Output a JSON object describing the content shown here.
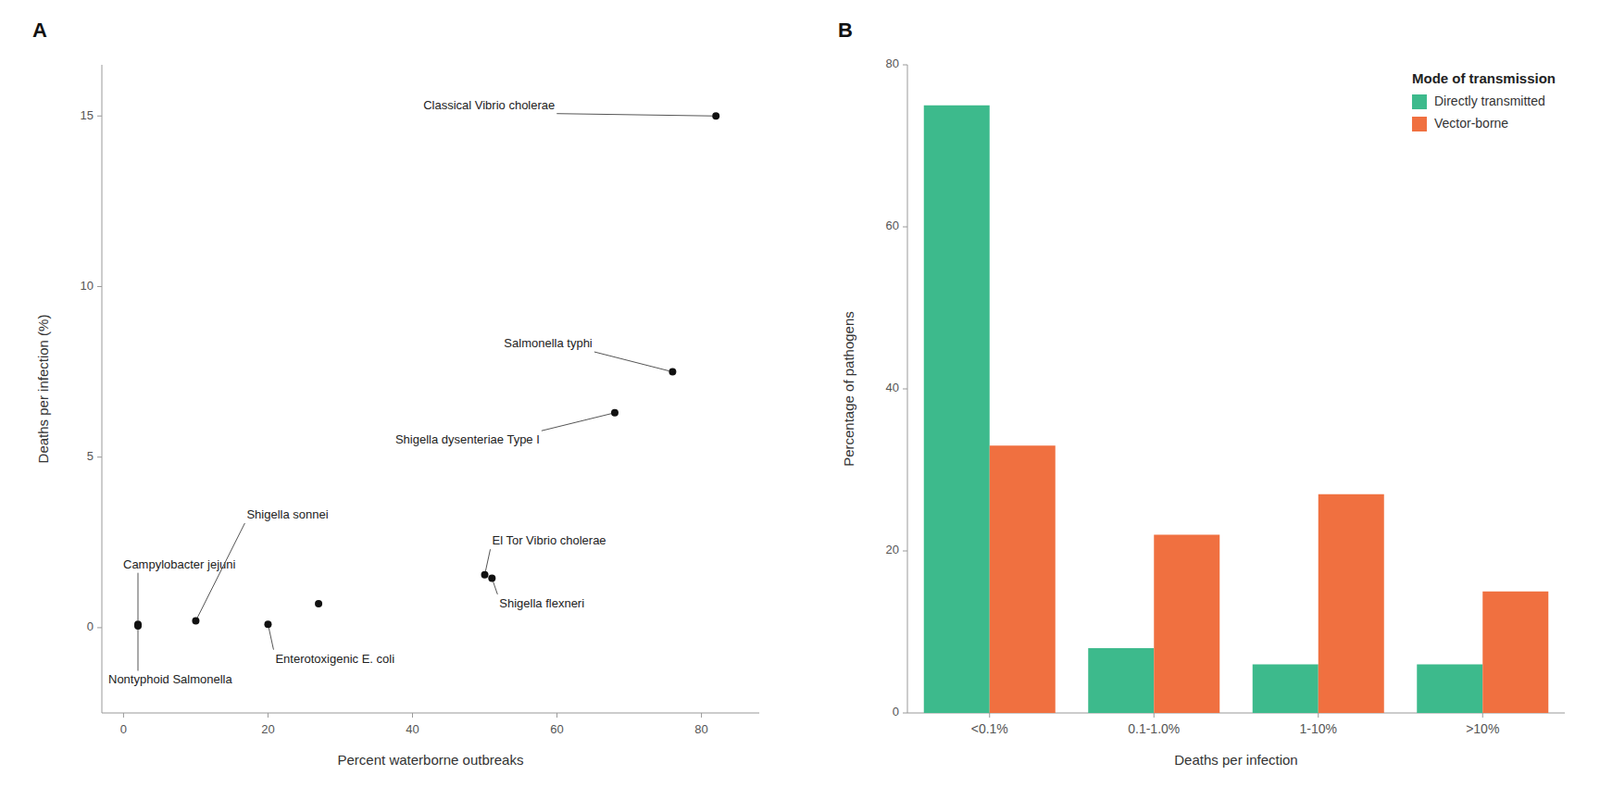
{
  "chart_data": [
    {
      "type": "scatter",
      "title": "A",
      "xlabel": "Percent waterborne outbreaks",
      "ylabel": "Deaths per infection (%)",
      "x": [
        2,
        2,
        10,
        20,
        27,
        50,
        51,
        68,
        76,
        82
      ],
      "series": [
        {
          "values": [
            0.1,
            0.05,
            0.2,
            0.1,
            0.7,
            1.55,
            1.45,
            6.3,
            7.5,
            15.0
          ],
          "color": "#111111"
        }
      ],
      "annotations": [
        {
          "text": "Campylobacter jejuni",
          "x": 2,
          "y": 0.1
        },
        {
          "text": "Nontyphoid Salmonella",
          "x": 2,
          "y": 0.05
        },
        {
          "text": "Shigella sonnei",
          "x": 10,
          "y": 0.2
        },
        {
          "text": "Enterotoxigenic E. coli",
          "x": 20,
          "y": 0.1
        },
        {
          "text": "El Tor Vibrio cholerae",
          "x": 50,
          "y": 1.55
        },
        {
          "text": "Shigella flexneri",
          "x": 51,
          "y": 1.45
        },
        {
          "text": "Shigella dysenteriae Type I",
          "x": 68,
          "y": 6.3
        },
        {
          "text": "Salmonella typhi",
          "x": 76,
          "y": 7.5
        },
        {
          "text": "Classical Vibrio cholerae",
          "x": 82,
          "y": 15.0
        }
      ],
      "xlim": [
        -3,
        88
      ],
      "ylim": [
        -2.5,
        16.5
      ],
      "xticks": [
        0,
        20,
        40,
        60,
        80
      ],
      "yticks": [
        0,
        5,
        10,
        15
      ],
      "grid": false
    },
    {
      "type": "bar",
      "title": "B",
      "xlabel": "Deaths per infection",
      "ylabel": "Percentage of pathogens",
      "legend_title": "Mode of transmission",
      "categories": [
        "<0.1%",
        "0.1-1.0%",
        "1-10%",
        ">10%"
      ],
      "series": [
        {
          "name": "Directly transmitted",
          "color": "#3dba8c",
          "values": [
            75,
            8,
            6,
            6
          ]
        },
        {
          "name": "Vector-borne",
          "color": "#f07040",
          "values": [
            33,
            22,
            27,
            15
          ]
        }
      ],
      "ylim": [
        0,
        80
      ],
      "yticks": [
        0,
        20,
        40,
        60,
        80
      ],
      "grid": false,
      "legend": "upper right"
    }
  ]
}
